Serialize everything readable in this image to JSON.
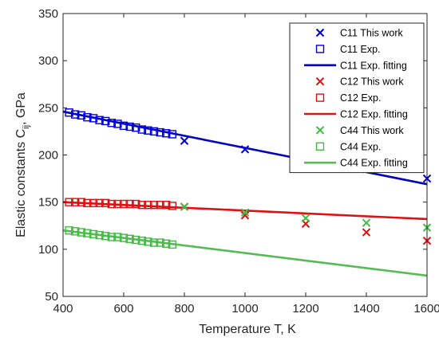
{
  "chart_data": {
    "type": "scatter",
    "xlabel": "Temperature T, K",
    "ylabel_main": "Elastic constants C",
    "ylabel_sub": "ij",
    "ylabel_unit": ", GPa",
    "xlim": [
      400,
      1600
    ],
    "ylim": [
      50,
      350
    ],
    "xticks": [
      400,
      600,
      800,
      1000,
      1200,
      1400,
      1600
    ],
    "yticks": [
      50,
      100,
      150,
      200,
      250,
      300,
      350
    ],
    "grid": false,
    "legend_position": "top-right",
    "series": [
      {
        "name": "C11 This work",
        "kind": "x-marker",
        "color": "#0000d9",
        "points": [
          [
            800,
            215
          ],
          [
            1000,
            206
          ],
          [
            1200,
            196
          ],
          [
            1400,
            185
          ],
          [
            1600,
            175
          ]
        ]
      },
      {
        "name": "C11 Exp.",
        "kind": "square-marker",
        "color": "#0000d9",
        "points": [
          [
            420,
            245
          ],
          [
            440,
            243
          ],
          [
            460,
            242
          ],
          [
            480,
            240
          ],
          [
            500,
            239
          ],
          [
            520,
            237
          ],
          [
            540,
            236
          ],
          [
            560,
            234
          ],
          [
            580,
            233
          ],
          [
            600,
            231
          ],
          [
            620,
            230
          ],
          [
            640,
            229
          ],
          [
            660,
            227
          ],
          [
            680,
            226
          ],
          [
            700,
            225
          ],
          [
            720,
            224
          ],
          [
            740,
            223
          ],
          [
            760,
            222
          ]
        ]
      },
      {
        "name": "C11 Exp. fitting",
        "kind": "line",
        "color": "#0000c8",
        "points": [
          [
            400,
            246
          ],
          [
            1600,
            169
          ]
        ]
      },
      {
        "name": "C12 This work",
        "kind": "x-marker",
        "color": "#e01010",
        "points": [
          [
            800,
            145
          ],
          [
            1000,
            136
          ],
          [
            1200,
            127
          ],
          [
            1400,
            118
          ],
          [
            1600,
            109
          ]
        ]
      },
      {
        "name": "C12 Exp.",
        "kind": "square-marker",
        "color": "#e01010",
        "points": [
          [
            420,
            150
          ],
          [
            440,
            150
          ],
          [
            460,
            150
          ],
          [
            480,
            149
          ],
          [
            500,
            149
          ],
          [
            520,
            149
          ],
          [
            540,
            149
          ],
          [
            560,
            148
          ],
          [
            580,
            148
          ],
          [
            600,
            148
          ],
          [
            620,
            148
          ],
          [
            640,
            148
          ],
          [
            660,
            147
          ],
          [
            680,
            147
          ],
          [
            700,
            147
          ],
          [
            720,
            147
          ],
          [
            740,
            147
          ],
          [
            760,
            146
          ]
        ]
      },
      {
        "name": "C12 Exp. fitting",
        "kind": "line",
        "color": "#e01010",
        "points": [
          [
            400,
            150
          ],
          [
            1600,
            132
          ]
        ]
      },
      {
        "name": "C44 This work",
        "kind": "x-marker",
        "color": "#44bb44",
        "points": [
          [
            800,
            145
          ],
          [
            1000,
            139
          ],
          [
            1200,
            133
          ],
          [
            1400,
            128
          ],
          [
            1600,
            123
          ]
        ]
      },
      {
        "name": "C44 Exp.",
        "kind": "square-marker",
        "color": "#44bb44",
        "points": [
          [
            420,
            120
          ],
          [
            440,
            119
          ],
          [
            460,
            118
          ],
          [
            480,
            117
          ],
          [
            500,
            116
          ],
          [
            520,
            115
          ],
          [
            540,
            114
          ],
          [
            560,
            113
          ],
          [
            580,
            113
          ],
          [
            600,
            112
          ],
          [
            620,
            111
          ],
          [
            640,
            110
          ],
          [
            660,
            109
          ],
          [
            680,
            108
          ],
          [
            700,
            107
          ],
          [
            720,
            107
          ],
          [
            740,
            106
          ],
          [
            760,
            105
          ]
        ]
      },
      {
        "name": "C44 Exp. fitting",
        "kind": "line",
        "color": "#55bb55",
        "points": [
          [
            400,
            120
          ],
          [
            1600,
            72
          ]
        ]
      }
    ]
  }
}
